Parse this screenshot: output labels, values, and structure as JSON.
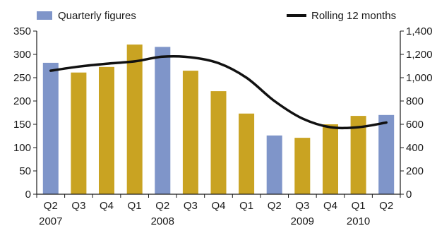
{
  "chart_data": {
    "type": "bar",
    "title": "",
    "xlabel": "",
    "ylabel": "",
    "legend_position": "top",
    "grid": false,
    "categories": [
      "Q2",
      "Q3",
      "Q4",
      "Q1",
      "Q2",
      "Q3",
      "Q4",
      "Q1",
      "Q2",
      "Q3",
      "Q4",
      "Q1",
      "Q2"
    ],
    "years": [
      {
        "label": "2007",
        "category_index": 0
      },
      {
        "label": "2008",
        "category_index": 4
      },
      {
        "label": "2009",
        "category_index": 9
      },
      {
        "label": "2010",
        "category_index": 11
      }
    ],
    "series": [
      {
        "name": "Quarterly figures",
        "type": "bar",
        "axis": "left",
        "values": [
          282,
          261,
          273,
          321,
          316,
          265,
          221,
          173,
          126,
          121,
          150,
          168,
          170
        ],
        "bar_colors": [
          "#7f95c9",
          "#c9a322",
          "#c9a322",
          "#c9a322",
          "#7f95c9",
          "#c9a322",
          "#c9a322",
          "#c9a322",
          "#7f95c9",
          "#c9a322",
          "#c9a322",
          "#c9a322",
          "#7f95c9"
        ]
      },
      {
        "name": "Rolling 12 months",
        "type": "line",
        "axis": "right",
        "color": "#111111",
        "values": [
          1060,
          1095,
          1120,
          1140,
          1180,
          1175,
          1125,
          1000,
          800,
          650,
          575,
          575,
          615
        ]
      }
    ],
    "y_left": {
      "min": 0,
      "max": 350,
      "ticks": [
        "0",
        "50",
        "100",
        "150",
        "200",
        "250",
        "300",
        "350"
      ]
    },
    "y_right": {
      "min": 0,
      "max": 1400,
      "ticks": [
        "0",
        "200",
        "400",
        "600",
        "800",
        "1,000",
        "1,200",
        "1,400"
      ]
    }
  }
}
